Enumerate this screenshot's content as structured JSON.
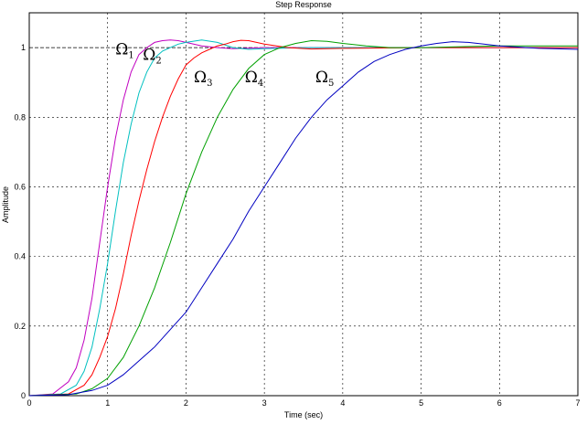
{
  "chart_data": {
    "type": "line",
    "title": "Step Response",
    "xlabel": "Time (sec)",
    "ylabel": "Amplitude",
    "xlim": [
      0,
      7
    ],
    "ylim": [
      0,
      1.1
    ],
    "grid": true,
    "x_ticks": [
      "0",
      "1",
      "2",
      "3",
      "4",
      "5",
      "6",
      "7"
    ],
    "y_ticks": [
      "0",
      "0.2",
      "0.4",
      "0.6",
      "0.8",
      "1"
    ],
    "reference_line": 1,
    "series": [
      {
        "color": "#c000c0",
        "label_base": "Ω",
        "label_sub": "1",
        "label_at": [
          1.1,
          0.98
        ],
        "points": [
          [
            0,
            0
          ],
          [
            0.3,
            0.005
          ],
          [
            0.5,
            0.04
          ],
          [
            0.6,
            0.08
          ],
          [
            0.7,
            0.16
          ],
          [
            0.8,
            0.28
          ],
          [
            0.9,
            0.44
          ],
          [
            1.0,
            0.6
          ],
          [
            1.1,
            0.74
          ],
          [
            1.2,
            0.85
          ],
          [
            1.3,
            0.93
          ],
          [
            1.4,
            0.98
          ],
          [
            1.5,
            1.0
          ],
          [
            1.6,
            1.015
          ],
          [
            1.7,
            1.02
          ],
          [
            1.8,
            1.022
          ],
          [
            1.9,
            1.02
          ],
          [
            2.0,
            1.015
          ],
          [
            2.2,
            1.005
          ],
          [
            2.4,
            1.0
          ],
          [
            2.6,
            0.997
          ],
          [
            3.0,
            1.0
          ],
          [
            4.0,
            1.0
          ],
          [
            5.0,
            1.0
          ],
          [
            6.0,
            1.0
          ],
          [
            7.0,
            1.0
          ]
        ]
      },
      {
        "color": "#00c0c0",
        "label_base": "Ω",
        "label_sub": "2",
        "label_at": [
          1.45,
          0.965
        ],
        "points": [
          [
            0,
            0
          ],
          [
            0.4,
            0.005
          ],
          [
            0.6,
            0.03
          ],
          [
            0.7,
            0.07
          ],
          [
            0.8,
            0.14
          ],
          [
            0.9,
            0.25
          ],
          [
            1.0,
            0.38
          ],
          [
            1.1,
            0.53
          ],
          [
            1.2,
            0.67
          ],
          [
            1.3,
            0.78
          ],
          [
            1.4,
            0.87
          ],
          [
            1.5,
            0.93
          ],
          [
            1.6,
            0.97
          ],
          [
            1.7,
            0.99
          ],
          [
            1.8,
            1.0
          ],
          [
            1.9,
            1.01
          ],
          [
            2.0,
            1.015
          ],
          [
            2.2,
            1.022
          ],
          [
            2.4,
            1.015
          ],
          [
            2.6,
            1.0
          ],
          [
            2.8,
            0.995
          ],
          [
            3.0,
            0.997
          ],
          [
            3.5,
            1.0
          ],
          [
            4.0,
            1.0
          ],
          [
            5.0,
            1.0
          ],
          [
            6.0,
            1.0
          ],
          [
            7.0,
            1.0
          ]
        ]
      },
      {
        "color": "#ff0000",
        "label_base": "Ω",
        "label_sub": "3",
        "label_at": [
          2.1,
          0.9
        ],
        "points": [
          [
            0,
            0
          ],
          [
            0.5,
            0.005
          ],
          [
            0.7,
            0.03
          ],
          [
            0.8,
            0.06
          ],
          [
            0.9,
            0.11
          ],
          [
            1.0,
            0.17
          ],
          [
            1.1,
            0.25
          ],
          [
            1.2,
            0.35
          ],
          [
            1.3,
            0.46
          ],
          [
            1.4,
            0.56
          ],
          [
            1.5,
            0.65
          ],
          [
            1.6,
            0.73
          ],
          [
            1.7,
            0.8
          ],
          [
            1.8,
            0.86
          ],
          [
            1.9,
            0.91
          ],
          [
            2.0,
            0.95
          ],
          [
            2.1,
            0.97
          ],
          [
            2.2,
            0.985
          ],
          [
            2.3,
            0.995
          ],
          [
            2.4,
            1.005
          ],
          [
            2.5,
            1.01
          ],
          [
            2.6,
            1.017
          ],
          [
            2.7,
            1.021
          ],
          [
            2.8,
            1.02
          ],
          [
            3.0,
            1.01
          ],
          [
            3.3,
            1.0
          ],
          [
            3.6,
            0.996
          ],
          [
            4.0,
            0.998
          ],
          [
            5.0,
            1.0
          ],
          [
            6.0,
            1.0
          ],
          [
            7.0,
            1.0
          ]
        ]
      },
      {
        "color": "#00a000",
        "label_base": "Ω",
        "label_sub": "4",
        "label_at": [
          2.75,
          0.9
        ],
        "points": [
          [
            0,
            0
          ],
          [
            0.6,
            0.005
          ],
          [
            0.8,
            0.02
          ],
          [
            1.0,
            0.05
          ],
          [
            1.2,
            0.11
          ],
          [
            1.4,
            0.2
          ],
          [
            1.6,
            0.31
          ],
          [
            1.8,
            0.44
          ],
          [
            2.0,
            0.58
          ],
          [
            2.2,
            0.7
          ],
          [
            2.4,
            0.8
          ],
          [
            2.6,
            0.88
          ],
          [
            2.8,
            0.94
          ],
          [
            3.0,
            0.98
          ],
          [
            3.2,
            1.0
          ],
          [
            3.4,
            1.012
          ],
          [
            3.6,
            1.02
          ],
          [
            3.8,
            1.018
          ],
          [
            4.0,
            1.012
          ],
          [
            4.3,
            1.005
          ],
          [
            4.6,
            1.0
          ],
          [
            5.0,
            1.0
          ],
          [
            6.0,
            1.005
          ],
          [
            7.0,
            1.005
          ]
        ]
      },
      {
        "color": "#0000c0",
        "label_base": "Ω",
        "label_sub": "5",
        "label_at": [
          3.65,
          0.9
        ],
        "points": [
          [
            0,
            0
          ],
          [
            0.5,
            0.003
          ],
          [
            0.8,
            0.015
          ],
          [
            1.0,
            0.03
          ],
          [
            1.2,
            0.06
          ],
          [
            1.4,
            0.1
          ],
          [
            1.6,
            0.14
          ],
          [
            1.8,
            0.19
          ],
          [
            2.0,
            0.24
          ],
          [
            2.2,
            0.31
          ],
          [
            2.4,
            0.38
          ],
          [
            2.6,
            0.45
          ],
          [
            2.8,
            0.53
          ],
          [
            3.0,
            0.6
          ],
          [
            3.2,
            0.67
          ],
          [
            3.4,
            0.74
          ],
          [
            3.6,
            0.8
          ],
          [
            3.8,
            0.85
          ],
          [
            4.0,
            0.89
          ],
          [
            4.2,
            0.93
          ],
          [
            4.4,
            0.96
          ],
          [
            4.6,
            0.98
          ],
          [
            4.8,
            0.995
          ],
          [
            5.0,
            1.005
          ],
          [
            5.2,
            1.012
          ],
          [
            5.4,
            1.017
          ],
          [
            5.6,
            1.015
          ],
          [
            5.8,
            1.01
          ],
          [
            6.0,
            1.005
          ],
          [
            6.5,
            0.998
          ],
          [
            7.0,
            0.995
          ]
        ]
      }
    ]
  }
}
